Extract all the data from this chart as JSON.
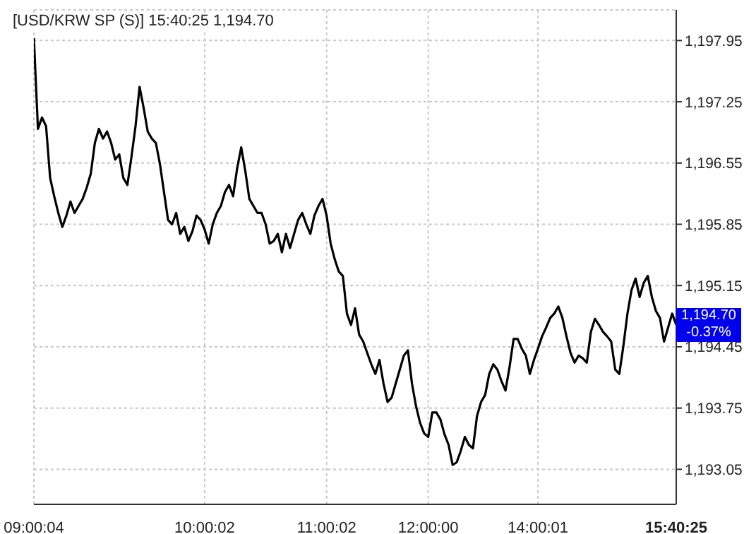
{
  "chart_data": {
    "type": "line",
    "title": "[USD/KRW SP (S)] 15:40:25  1,194.70",
    "categories": [
      "09:00:04",
      null,
      null,
      null,
      null,
      null,
      null,
      null,
      null,
      null,
      null,
      null,
      null,
      null,
      null,
      null,
      null,
      null,
      null,
      null,
      null,
      null,
      null,
      null,
      null,
      null,
      null,
      null,
      null,
      null,
      null,
      null,
      null,
      null,
      null,
      null,
      null,
      null,
      null,
      null,
      null,
      null,
      "10:00:02",
      null,
      null,
      null,
      null,
      null,
      null,
      null,
      null,
      null,
      null,
      null,
      null,
      null,
      null,
      null,
      null,
      null,
      null,
      null,
      null,
      null,
      null,
      null,
      null,
      null,
      null,
      null,
      null,
      null,
      "11:00:02",
      null,
      null,
      null,
      null,
      null,
      null,
      null,
      null,
      null,
      null,
      null,
      null,
      null,
      null,
      null,
      null,
      null,
      null,
      null,
      null,
      null,
      null,
      null,
      null,
      "12:00:00",
      null,
      null,
      null,
      null,
      null,
      null,
      null,
      null,
      null,
      null,
      null,
      null,
      null,
      null,
      null,
      null,
      null,
      null,
      null,
      null,
      null,
      null,
      null,
      null,
      null,
      null,
      "14:00:01",
      null,
      null,
      null,
      null,
      null,
      null,
      null,
      null,
      null,
      null,
      null,
      null,
      null,
      null,
      null,
      null,
      null,
      null,
      null,
      null,
      null,
      null,
      null,
      null,
      null,
      null,
      null,
      null,
      null,
      null,
      null,
      null,
      null,
      "15:40:25"
    ],
    "series": [
      {
        "color": "#000000",
        "values": [
          1197.98,
          1196.94,
          1197.07,
          1196.97,
          1196.38,
          1196.17,
          1195.98,
          1195.82,
          1195.95,
          1196.11,
          1195.98,
          1196.06,
          1196.14,
          1196.27,
          1196.43,
          1196.78,
          1196.94,
          1196.83,
          1196.91,
          1196.78,
          1196.59,
          1196.65,
          1196.38,
          1196.3,
          1196.62,
          1196.97,
          1197.42,
          1197.18,
          1196.91,
          1196.83,
          1196.78,
          1196.54,
          1196.22,
          1195.9,
          1195.85,
          1195.98,
          1195.74,
          1195.82,
          1195.66,
          1195.77,
          1195.95,
          1195.9,
          1195.79,
          1195.63,
          1195.85,
          1195.98,
          1196.06,
          1196.22,
          1196.3,
          1196.17,
          1196.49,
          1196.73,
          1196.46,
          1196.14,
          1196.06,
          1195.98,
          1195.98,
          1195.85,
          1195.63,
          1195.66,
          1195.74,
          1195.53,
          1195.74,
          1195.58,
          1195.74,
          1195.9,
          1195.98,
          1195.85,
          1195.74,
          1195.95,
          1196.06,
          1196.14,
          1195.95,
          1195.63,
          1195.45,
          1195.31,
          1195.26,
          1194.83,
          1194.7,
          1194.89,
          1194.59,
          1194.51,
          1194.38,
          1194.25,
          1194.14,
          1194.3,
          1194.03,
          1193.82,
          1193.87,
          1194.03,
          1194.19,
          1194.35,
          1194.41,
          1194.03,
          1193.77,
          1193.58,
          1193.46,
          1193.42,
          1193.7,
          1193.7,
          1193.62,
          1193.45,
          1193.33,
          1193.1,
          1193.13,
          1193.26,
          1193.42,
          1193.33,
          1193.29,
          1193.66,
          1193.82,
          1193.9,
          1194.14,
          1194.25,
          1194.19,
          1194.06,
          1193.95,
          1194.22,
          1194.54,
          1194.54,
          1194.43,
          1194.35,
          1194.14,
          1194.3,
          1194.43,
          1194.57,
          1194.67,
          1194.78,
          1194.83,
          1194.91,
          1194.78,
          1194.57,
          1194.38,
          1194.27,
          1194.35,
          1194.32,
          1194.27,
          1194.62,
          1194.77,
          1194.7,
          1194.62,
          1194.57,
          1194.51,
          1194.19,
          1194.14,
          1194.46,
          1194.83,
          1195.1,
          1195.23,
          1195.02,
          1195.18,
          1195.26,
          1195.02,
          1194.86,
          1194.78,
          1194.51,
          1194.67,
          1194.83,
          1194.7
        ]
      }
    ],
    "ylim": [
      1192.65,
      1198.3
    ],
    "yticks": [
      {
        "value": 1193.05,
        "label": "1,193.05"
      },
      {
        "value": 1193.75,
        "label": "1,193.75"
      },
      {
        "value": 1194.45,
        "label": "1,194.45"
      },
      {
        "value": 1195.15,
        "label": "1,195.15"
      },
      {
        "value": 1195.85,
        "label": "1,195.85"
      },
      {
        "value": 1196.55,
        "label": "1,196.55"
      },
      {
        "value": 1197.25,
        "label": "1,197.25"
      },
      {
        "value": 1197.95,
        "label": "1,197.95"
      }
    ],
    "annotations": [
      "1,194.70\n-0.37%"
    ],
    "grid": true,
    "marker": "none",
    "line_style": "solid",
    "legend": false
  }
}
